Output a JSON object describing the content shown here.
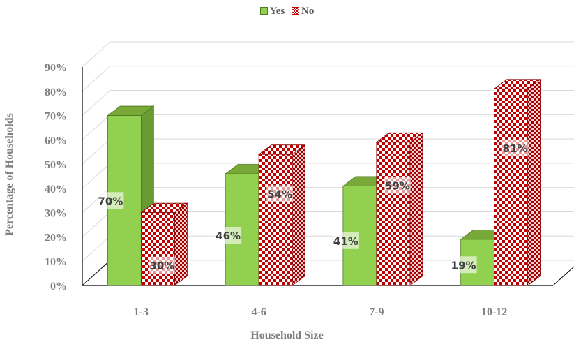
{
  "chart_data": {
    "type": "bar",
    "title": "",
    "xlabel": "Household Size",
    "ylabel": "Percentage of Households",
    "categories": [
      "1-3",
      "4-6",
      "7-9",
      "10-12"
    ],
    "series": [
      {
        "name": "Yes",
        "values": [
          70,
          46,
          41,
          19
        ],
        "labels": [
          "70%",
          "46%",
          "41%",
          "19%"
        ],
        "color": "#92d050",
        "fill": "solid"
      },
      {
        "name": "No",
        "values": [
          30,
          54,
          59,
          81
        ],
        "labels": [
          "30%",
          "54%",
          "59%",
          "81%"
        ],
        "color": "#c00000",
        "fill": "checkerboard"
      }
    ],
    "ylim": [
      0,
      90
    ],
    "yticks": [
      "0%",
      "10%",
      "20%",
      "30%",
      "40%",
      "50%",
      "60%",
      "70%",
      "80%",
      "90%"
    ],
    "legend_position": "top-center",
    "grid": true,
    "style": "3d-clustered-column"
  }
}
